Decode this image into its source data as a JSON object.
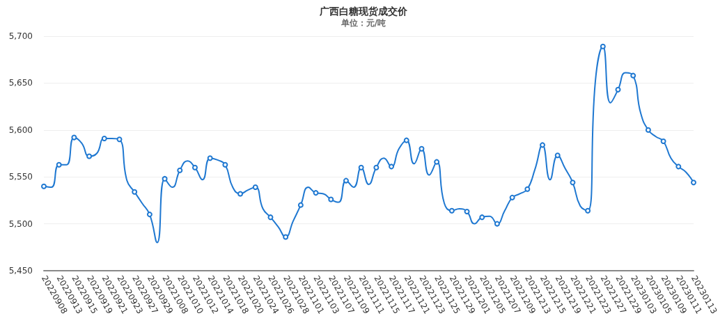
{
  "chart_data": {
    "type": "line",
    "title": "广西白糖现货成交价",
    "subtitle": "单位：元/吨",
    "categories": [
      "20220908",
      null,
      "20220913",
      null,
      "20220915",
      null,
      "20220919",
      null,
      "20220921",
      null,
      "20220923",
      null,
      "20220927",
      null,
      "20220929",
      null,
      "20221008",
      null,
      "20221010",
      null,
      "20221012",
      null,
      "20221014",
      null,
      "20221018",
      null,
      "20221020",
      null,
      "20221024",
      null,
      "20221026",
      null,
      "20221028",
      null,
      "20221101",
      null,
      "20221103",
      null,
      "20221107",
      null,
      "20221109",
      null,
      "20221111",
      null,
      "20221115",
      null,
      "20221117",
      null,
      "20221121",
      null,
      "20221123",
      null,
      "20221125",
      null,
      "20221129",
      null,
      "20221201",
      null,
      "20221205",
      null,
      "20221207",
      null,
      "20221209",
      null,
      "20221213",
      null,
      "20221215",
      null,
      "20221219",
      null,
      "20221221",
      null,
      "20221223",
      null,
      "20221227",
      null,
      "20221229",
      null,
      "20230103",
      null,
      "20230105",
      null,
      "20230109",
      null,
      "20230111",
      null,
      "20230113"
    ],
    "series": [
      {
        "color": "#1f78d1",
        "values": [
          5540,
          5539,
          5563,
          5563,
          5592,
          5586,
          5572,
          5575,
          5591,
          5591,
          5590,
          5546,
          5534,
          5522,
          5510,
          5480,
          5548,
          5539,
          5557,
          5567,
          5560,
          5547,
          5570,
          5568,
          5563,
          5539,
          5532,
          5536,
          5539,
          5516,
          5507,
          5497,
          5486,
          5503,
          5520,
          5539,
          5533,
          5532,
          5526,
          5523,
          5546,
          5539,
          5560,
          5542,
          5560,
          5570,
          5561,
          5580,
          5589,
          5564,
          5580,
          5552,
          5566,
          5522,
          5514,
          5516,
          5513,
          5500,
          5507,
          5508,
          5500,
          5514,
          5528,
          5532,
          5537,
          5558,
          5584,
          5547,
          5573,
          5559,
          5544,
          5519,
          5514,
          5652,
          5689,
          5629,
          5643,
          5661,
          5658,
          5618,
          5600,
          5593,
          5588,
          5570,
          5561,
          5555,
          5544
        ]
      }
    ],
    "ylim": [
      5450,
      5700
    ],
    "yticks": [
      {
        "value": 5450,
        "label": "5,450"
      },
      {
        "value": 5500,
        "label": "5,500"
      },
      {
        "value": 5550,
        "label": "5,550"
      },
      {
        "value": 5600,
        "label": "5,600"
      },
      {
        "value": 5650,
        "label": "5,650"
      },
      {
        "value": 5700,
        "label": "5,700"
      }
    ],
    "grid": "y",
    "marker": "circle",
    "line_style": "solid"
  }
}
